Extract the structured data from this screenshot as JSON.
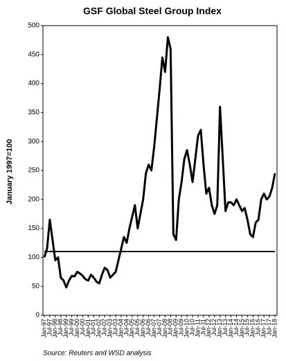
{
  "chart_data": {
    "type": "line",
    "title": "GSF Global Steel Group Index",
    "y_label": "January 1997=100",
    "source": "Source:  Reuters and WSD analysis",
    "categories": [
      "Jan-97",
      null,
      "Jul-97",
      null,
      "Jan-98",
      null,
      "Jul-98",
      null,
      "Jan-99",
      null,
      "Jul-99",
      null,
      "Jan-00",
      null,
      "Jul-00",
      null,
      "Jan-01",
      null,
      "Jul-01",
      null,
      "Jan-02",
      null,
      "Jul-02",
      null,
      "Jan-03",
      null,
      "Jul-03",
      null,
      "Jan-04",
      null,
      "Jul-04",
      null,
      "Jan-05",
      null,
      "Jul-05",
      null,
      "Jan-06",
      null,
      "Jul-06",
      null,
      "Jan-07",
      null,
      "Jul-07",
      null,
      "Jan-08",
      null,
      "Jul-08",
      null,
      "Jan-09",
      null,
      "Jul-09",
      null,
      "Jan-10",
      null,
      "Jul-10",
      null,
      "Jan-11",
      null,
      "Jul-11",
      null,
      "Jan-12",
      null,
      "Jul-12",
      null,
      "Jan-13",
      null,
      "Jul-13",
      null,
      "Jan-14",
      null,
      "Jul-14",
      null,
      "Jan-15",
      null,
      "Jul-15",
      null,
      "Jan-16",
      null,
      "Jul-16",
      null,
      "Jan-17",
      null,
      "Jul-17",
      null,
      "Jan-18"
    ],
    "values": [
      100,
      115,
      165,
      130,
      95,
      100,
      65,
      60,
      48,
      60,
      68,
      67,
      75,
      72,
      68,
      62,
      60,
      70,
      65,
      58,
      55,
      70,
      82,
      78,
      65,
      70,
      75,
      95,
      115,
      135,
      125,
      150,
      170,
      190,
      150,
      175,
      200,
      245,
      260,
      250,
      290,
      340,
      390,
      445,
      420,
      480,
      460,
      140,
      130,
      200,
      230,
      270,
      285,
      260,
      230,
      270,
      310,
      320,
      260,
      210,
      220,
      190,
      175,
      190,
      360,
      270,
      180,
      195,
      195,
      190,
      200,
      190,
      180,
      185,
      165,
      140,
      135,
      160,
      165,
      200,
      210,
      200,
      205,
      220,
      245
    ],
    "color": "#000000",
    "reference_value": 110,
    "ylim": [
      0,
      500
    ],
    "yticks": [
      0,
      50,
      100,
      150,
      200,
      250,
      300,
      350,
      400,
      450,
      500
    ]
  }
}
